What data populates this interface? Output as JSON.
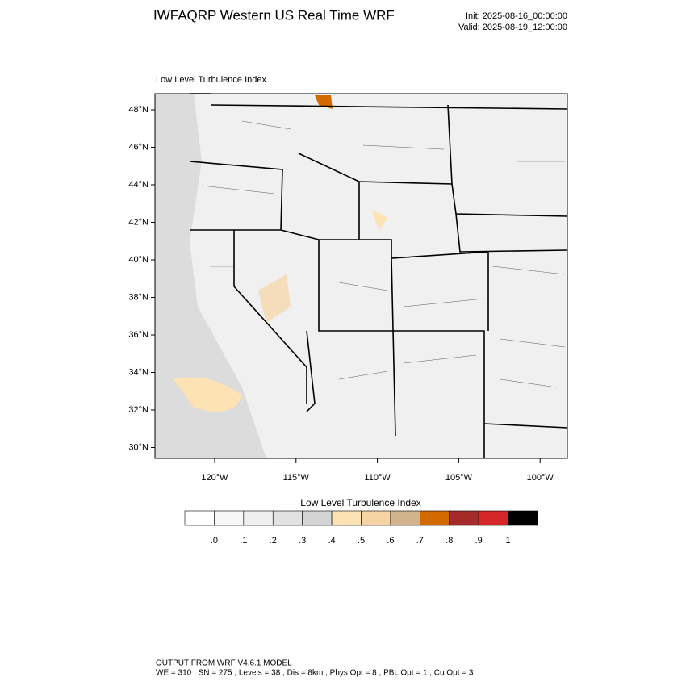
{
  "header": {
    "title": "IWFAQRP Western US Real Time WRF",
    "init": "Init: 2025-08-16_00:00:00",
    "valid": "Valid: 2025-08-19_12:00:00"
  },
  "map": {
    "subtitle": "Low Level Turbulence Index",
    "lat_labels": [
      "48°N",
      "46°N",
      "44°N",
      "42°N",
      "40°N",
      "38°N",
      "36°N",
      "34°N",
      "32°N",
      "30°N"
    ],
    "lon_labels": [
      "120°W",
      "115°W",
      "110°W",
      "105°W",
      "100°W"
    ]
  },
  "colorbar": {
    "title": "Low Level Turbulence Index",
    "colors": [
      "#ffffff",
      "#f7f7f7",
      "#efefef",
      "#e1e1e1",
      "#d4d4d4",
      "#fde2b3",
      "#f6d3a3",
      "#d2b48c",
      "#d26a00",
      "#a52a2a",
      "#d62728",
      "#000000"
    ],
    "labels": [
      ".0",
      ".1",
      ".2",
      ".3",
      ".4",
      ".5",
      ".6",
      ".7",
      ".8",
      ".9",
      "1"
    ]
  },
  "footer": {
    "line1": "OUTPUT FROM WRF V4.6.1 MODEL",
    "line2": "WE = 310 ; SN = 275 ; Levels = 38 ; Dis = 8km ; Phys Opt = 8 ; PBL Opt = 1 ; Cu Opt = 3"
  }
}
